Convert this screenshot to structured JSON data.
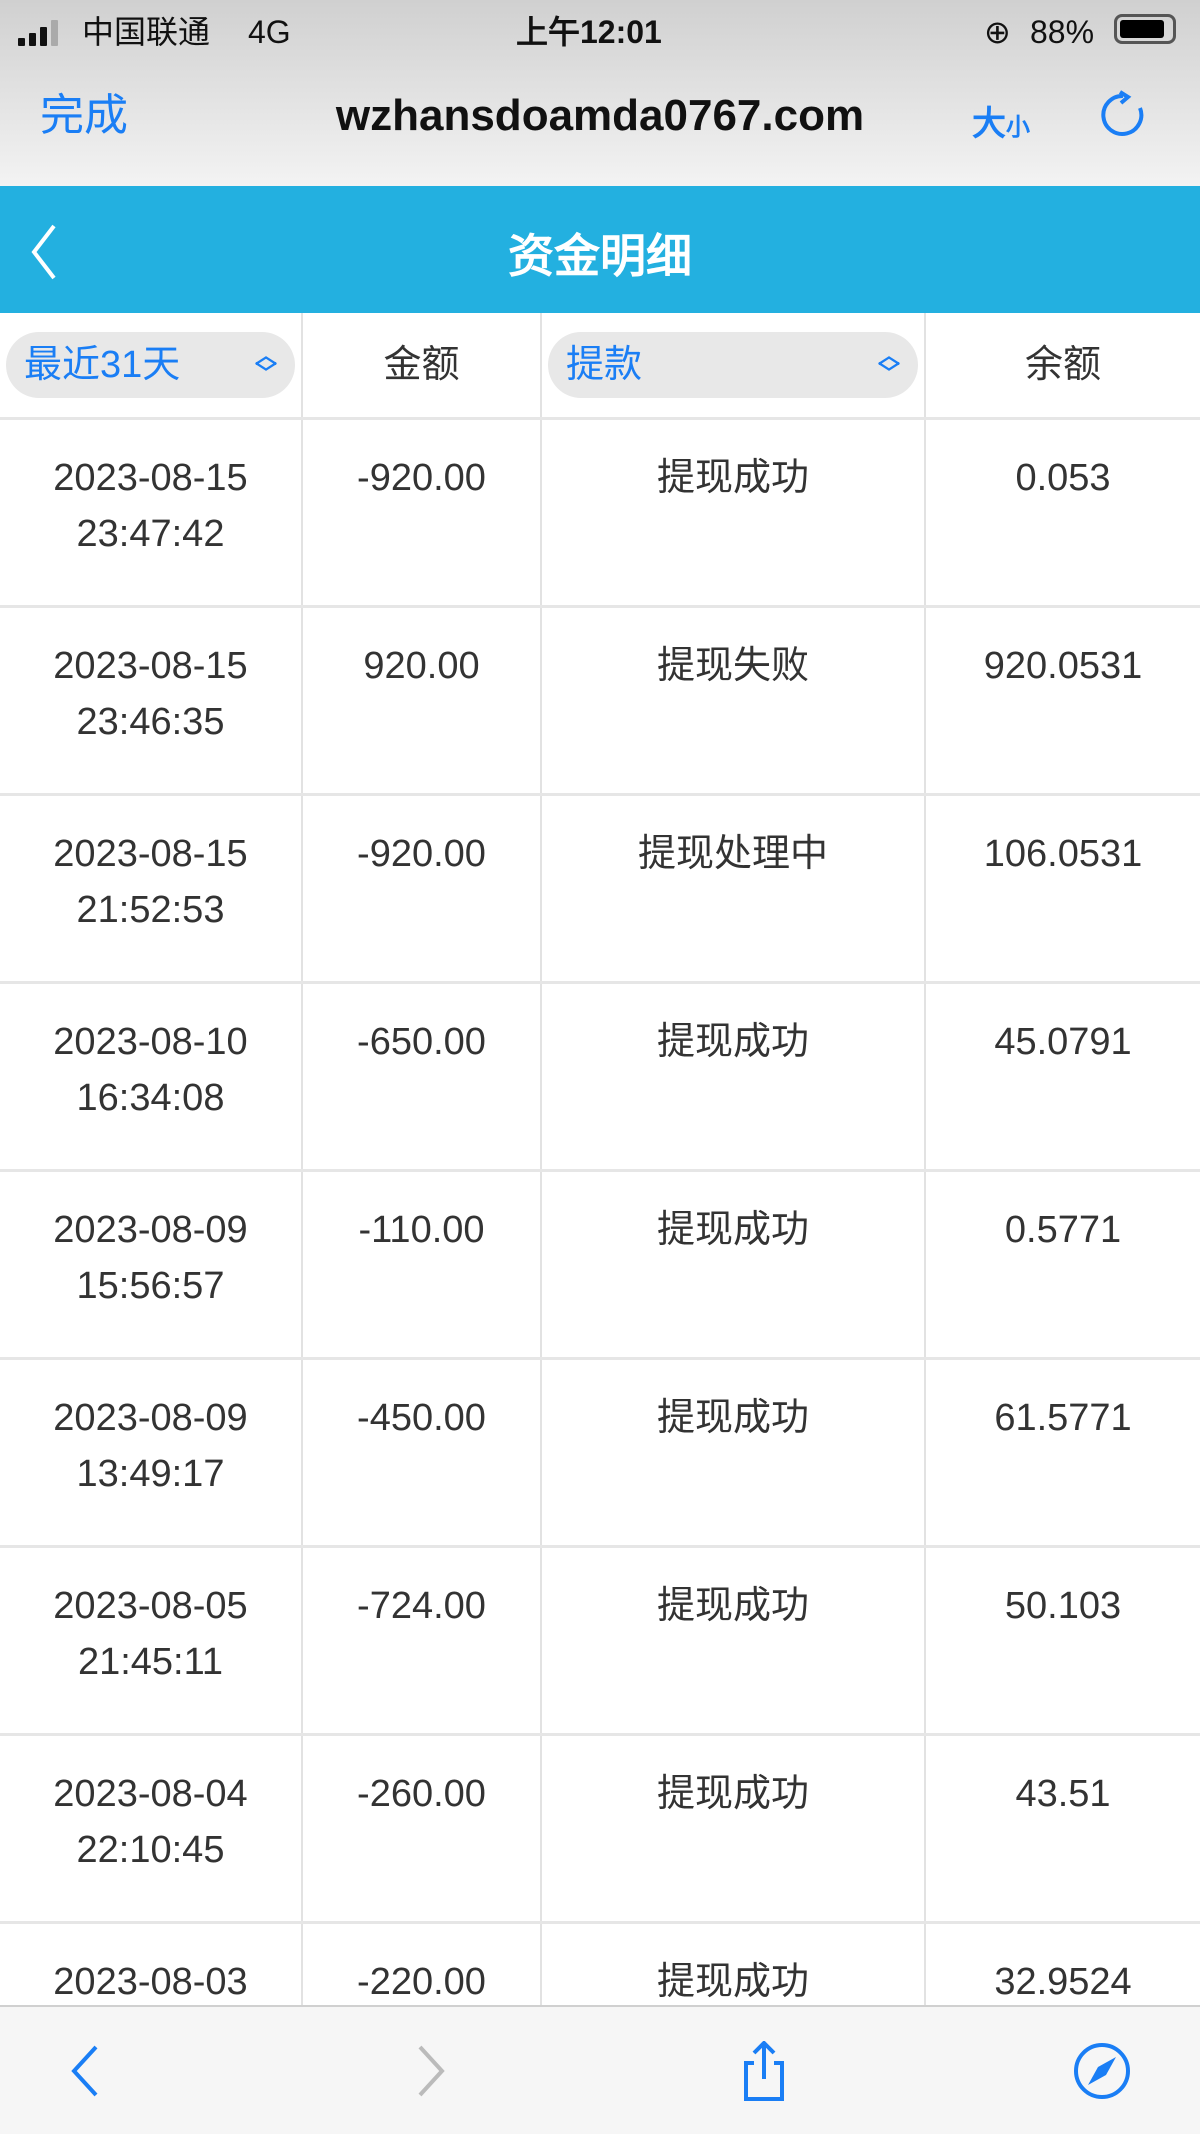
{
  "status_bar": {
    "carrier": "中国联通",
    "network": "4G",
    "time": "上午12:01",
    "battery": "88%",
    "battery_level": 0.88
  },
  "browser": {
    "done": "完成",
    "url": "wzhansdoamda0767.com",
    "text_size_big": "大",
    "text_size_small": "小"
  },
  "header": {
    "title": "资金明细"
  },
  "table": {
    "filter_period": "最近31天",
    "col_amount": "金额",
    "filter_type": "提款",
    "col_balance": "余额",
    "rows": [
      {
        "date": "2023-08-15",
        "time": "23:47:42",
        "amount": "-920.00",
        "status": "提现成功",
        "balance": "0.053"
      },
      {
        "date": "2023-08-15",
        "time": "23:46:35",
        "amount": "920.00",
        "status": "提现失败",
        "balance": "920.0531"
      },
      {
        "date": "2023-08-15",
        "time": "21:52:53",
        "amount": "-920.00",
        "status": "提现处理中",
        "balance": "106.0531"
      },
      {
        "date": "2023-08-10",
        "time": "16:34:08",
        "amount": "-650.00",
        "status": "提现成功",
        "balance": "45.0791"
      },
      {
        "date": "2023-08-09",
        "time": "15:56:57",
        "amount": "-110.00",
        "status": "提现成功",
        "balance": "0.5771"
      },
      {
        "date": "2023-08-09",
        "time": "13:49:17",
        "amount": "-450.00",
        "status": "提现成功",
        "balance": "61.5771"
      },
      {
        "date": "2023-08-05",
        "time": "21:45:11",
        "amount": "-724.00",
        "status": "提现成功",
        "balance": "50.103"
      },
      {
        "date": "2023-08-04",
        "time": "22:10:45",
        "amount": "-260.00",
        "status": "提现成功",
        "balance": "43.51"
      },
      {
        "date": "2023-08-03",
        "time": "",
        "amount": "-220.00",
        "status": "提现成功",
        "balance": "32.9524"
      }
    ]
  },
  "colors": {
    "accent": "#1a7ef5",
    "header": "#23b0e0"
  }
}
